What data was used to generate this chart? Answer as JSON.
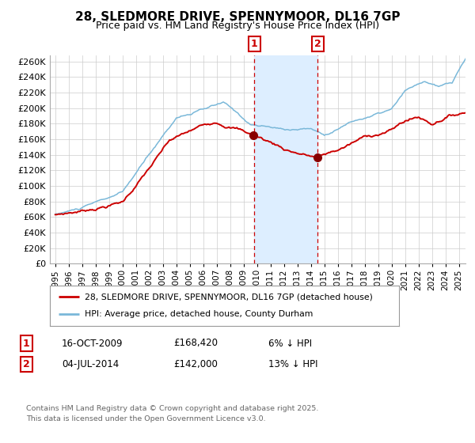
{
  "title": "28, SLEDMORE DRIVE, SPENNYMOOR, DL16 7GP",
  "subtitle": "Price paid vs. HM Land Registry's House Price Index (HPI)",
  "legend_line1": "28, SLEDMORE DRIVE, SPENNYMOOR, DL16 7GP (detached house)",
  "legend_line2": "HPI: Average price, detached house, County Durham",
  "transaction1_date": "16-OCT-2009",
  "transaction1_price": "£168,420",
  "transaction1_hpi": "6% ↓ HPI",
  "transaction2_date": "04-JUL-2014",
  "transaction2_price": "£142,000",
  "transaction2_hpi": "13% ↓ HPI",
  "footer": "Contains HM Land Registry data © Crown copyright and database right 2025.\nThis data is licensed under the Open Government Licence v3.0.",
  "hpi_color": "#7ab8d9",
  "price_color": "#cc0000",
  "dot_color": "#880000",
  "vline_color": "#cc0000",
  "shade_color": "#ddeeff",
  "grid_color": "#cccccc",
  "bg_color": "#ffffff",
  "t1_year": 2009.79,
  "t2_year": 2014.5
}
